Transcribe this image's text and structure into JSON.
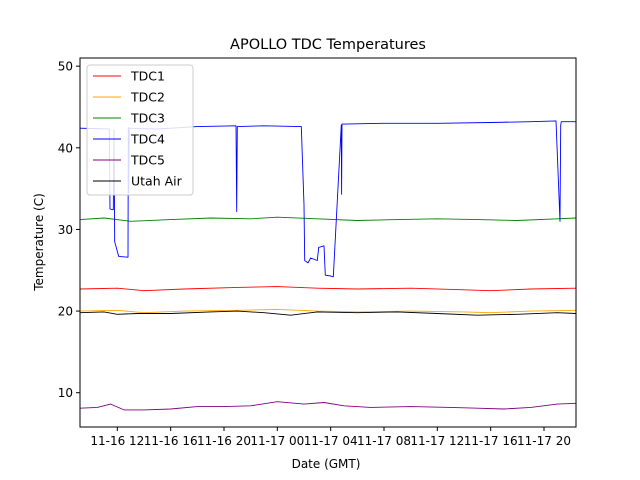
{
  "chart_data": {
    "type": "line",
    "title": "APOLLO TDC Temperatures",
    "xlabel": "Date (GMT)",
    "ylabel": "Temperature (C)",
    "x_unit": "hours since 2023-11-16 08:00 GMT",
    "xlim": [
      1.2,
      38.4
    ],
    "ylim": [
      5.8,
      51.0
    ],
    "grid": false,
    "legend_location": "upper-left",
    "yticks": [
      {
        "value": 10,
        "label": "10"
      },
      {
        "value": 20,
        "label": "20"
      },
      {
        "value": 30,
        "label": "30"
      },
      {
        "value": 40,
        "label": "40"
      },
      {
        "value": 50,
        "label": "50"
      }
    ],
    "xticks": [
      {
        "value": 4,
        "label": "11-16 12"
      },
      {
        "value": 8,
        "label": "11-16 16"
      },
      {
        "value": 12,
        "label": "11-16 20"
      },
      {
        "value": 16,
        "label": "11-17 00"
      },
      {
        "value": 20,
        "label": "11-17 04"
      },
      {
        "value": 24,
        "label": "11-17 08"
      },
      {
        "value": 28,
        "label": "11-17 12"
      },
      {
        "value": 32,
        "label": "11-17 16"
      },
      {
        "value": 36,
        "label": "11-17 20"
      }
    ],
    "series": [
      {
        "name": "TDC1",
        "color": "#ff0000",
        "x": [
          1.2,
          4,
          6,
          9,
          13,
          16,
          19,
          22,
          26,
          30,
          32,
          35,
          38.4
        ],
        "y": [
          22.7,
          22.8,
          22.5,
          22.7,
          22.9,
          23.0,
          22.8,
          22.7,
          22.8,
          22.6,
          22.5,
          22.7,
          22.8
        ]
      },
      {
        "name": "TDC2",
        "color": "#ffa500",
        "x": [
          1.2,
          4,
          6,
          9,
          13,
          16,
          19,
          22,
          26,
          30,
          32,
          35,
          38.4
        ],
        "y": [
          20.0,
          20.1,
          19.8,
          20.0,
          20.1,
          20.2,
          20.0,
          19.9,
          20.0,
          19.9,
          19.8,
          20.0,
          20.1
        ]
      },
      {
        "name": "TDC3",
        "color": "#008000",
        "x": [
          1.2,
          3,
          5,
          8,
          11,
          14,
          16,
          19,
          22,
          25,
          28,
          31,
          34,
          37,
          38.4
        ],
        "y": [
          31.2,
          31.4,
          31.0,
          31.2,
          31.4,
          31.3,
          31.5,
          31.3,
          31.1,
          31.2,
          31.3,
          31.2,
          31.1,
          31.3,
          31.4
        ]
      },
      {
        "name": "TDC4",
        "color": "#0000ff",
        "x": [
          1.2,
          3.4,
          3.45,
          3.7,
          3.75,
          3.8,
          4.1,
          4.8,
          4.82,
          4.85,
          4.9,
          7,
          10,
          12.9,
          12.95,
          13.0,
          15,
          17.8,
          18.0,
          18.05,
          18.3,
          18.5,
          19.0,
          19.1,
          19.5,
          19.6,
          20.0,
          20.2,
          20.8,
          20.82,
          20.85,
          20.9,
          21.0,
          24,
          28,
          32,
          35,
          36.9,
          37.2,
          37.25,
          37.3,
          38.4
        ],
        "y": [
          42.4,
          42.3,
          32.5,
          32.4,
          42.2,
          28.5,
          26.7,
          26.6,
          42.5,
          34.5,
          42.4,
          42.3,
          42.6,
          42.7,
          32.2,
          42.6,
          42.7,
          42.6,
          33.0,
          26.2,
          25.9,
          26.5,
          26.2,
          27.8,
          28.0,
          24.4,
          24.3,
          24.2,
          42.8,
          34.3,
          42.9,
          42.9,
          42.9,
          43.0,
          43.0,
          43.1,
          43.2,
          43.3,
          31.0,
          42.8,
          43.2,
          43.2
        ]
      },
      {
        "name": "TDC5",
        "color": "#800080",
        "x": [
          1.2,
          2.5,
          3.5,
          4.5,
          6,
          8,
          10,
          12,
          14,
          16,
          18,
          19.5,
          21,
          23,
          26,
          29,
          31,
          33,
          35,
          37,
          38.4
        ],
        "y": [
          8.1,
          8.2,
          8.6,
          7.9,
          7.9,
          8.0,
          8.3,
          8.3,
          8.4,
          8.9,
          8.6,
          8.8,
          8.4,
          8.2,
          8.3,
          8.2,
          8.1,
          8.0,
          8.2,
          8.6,
          8.7
        ]
      },
      {
        "name": "Utah Air",
        "color": "#000000",
        "x": [
          1.2,
          3,
          4,
          5.5,
          8,
          11,
          13,
          15,
          17,
          19,
          22,
          25,
          28,
          31,
          34,
          37,
          38.4
        ],
        "y": [
          19.8,
          19.9,
          19.6,
          19.7,
          19.7,
          19.9,
          20.0,
          19.8,
          19.5,
          19.9,
          19.8,
          19.9,
          19.7,
          19.5,
          19.6,
          19.8,
          19.7
        ]
      }
    ]
  }
}
